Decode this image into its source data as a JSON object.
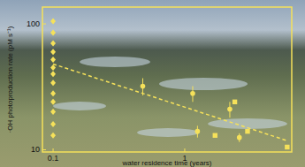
{
  "chart_data": {
    "type": "scatter",
    "x_label": "water residence time (years)",
    "y_label": "·OH photoproduction rate (pM s⁻¹)",
    "log": true,
    "xlim": [
      0.083,
      6.5
    ],
    "ylim": [
      9.6,
      136
    ],
    "xticks": [
      0.1,
      1
    ],
    "yticks": [
      10,
      100
    ],
    "color": "#f5e15a",
    "series": [
      {
        "type": "scatter",
        "marker": "diamond",
        "color": "#f5e15a",
        "x": [
          0.1,
          0.1,
          0.1,
          0.1,
          0.1,
          0.1,
          0.1,
          0.1,
          0.1,
          0.1,
          0.1,
          0.1,
          0.1
        ],
        "values": [
          105,
          85,
          70,
          60,
          52,
          45,
          40,
          34,
          28,
          24,
          20,
          16,
          13
        ]
      },
      {
        "type": "scatter",
        "marker": "circle",
        "color": "#f5e15a",
        "x": [
          0.48,
          1.15,
          1.25,
          2.2,
          2.6
        ],
        "values": [
          32,
          28,
          14,
          21,
          12.5
        ],
        "errors": [
          5,
          4,
          1.5,
          3,
          1
        ]
      },
      {
        "type": "scatter",
        "marker": "square",
        "color": "#f5e15a",
        "x": [
          1.7,
          2.4,
          3.0,
          6.0
        ],
        "values": [
          13,
          24,
          14,
          10.5
        ]
      },
      {
        "type": "line",
        "line_style": "dashed",
        "color": "#f5e15a",
        "x": [
          0.1,
          6.0
        ],
        "values": [
          48,
          11.8
        ]
      }
    ]
  }
}
